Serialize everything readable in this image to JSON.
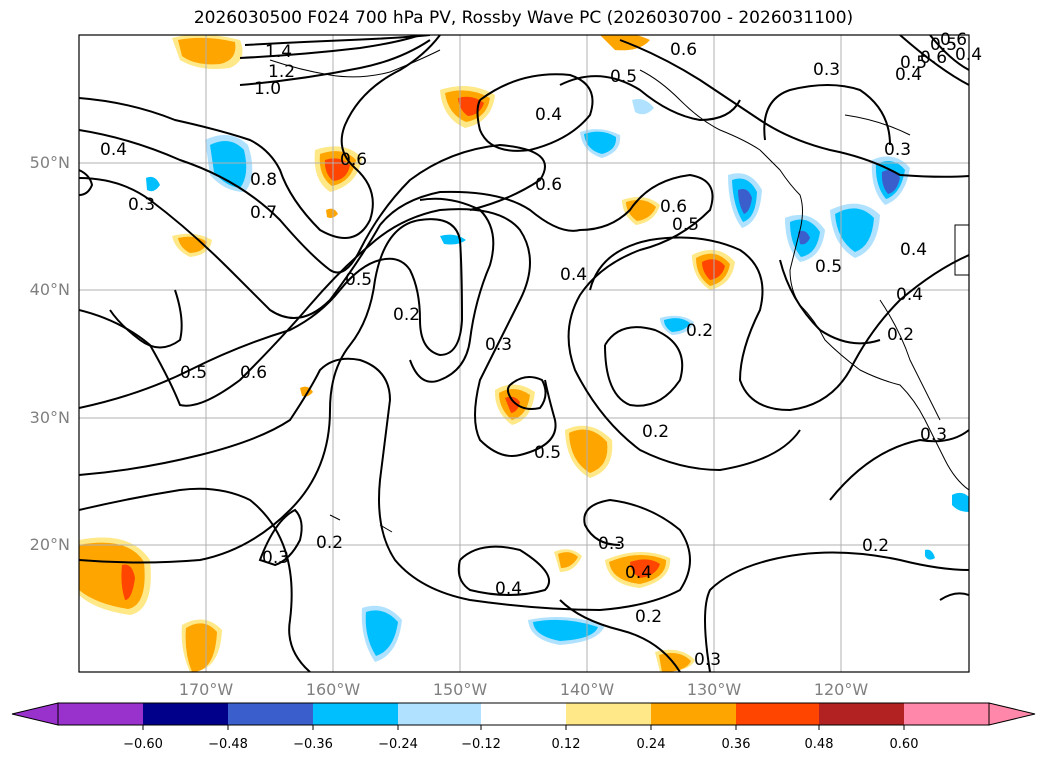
{
  "title": "2026030500 F024 700 hPa PV, Rossby Wave PC (2026030700 - 2026031100)",
  "lat_labels": [
    "50°N",
    "40°N",
    "30°N",
    "20°N"
  ],
  "lon_labels": [
    "170°W",
    "160°W",
    "150°W",
    "140°W",
    "130°W",
    "120°W"
  ],
  "colorbar": {
    "ticks": [
      "−0.60",
      "−0.48",
      "−0.36",
      "−0.24",
      "−0.12",
      "0.12",
      "0.24",
      "0.36",
      "0.48",
      "0.60"
    ],
    "colors": [
      "#9932cc",
      "#00008b",
      "#3a5fcd",
      "#00bfff",
      "#b0e2ff",
      "#ffffff",
      "#ffe888",
      "#ffa500",
      "#ff4500",
      "#b22222",
      "#ff88aa"
    ]
  },
  "contour_labels": [
    "1.4",
    "1.2",
    "1.0",
    "0.4",
    "0.3",
    "0.8",
    "0.7",
    "0.6",
    "0.5",
    "0.4",
    "0.5",
    "0.6",
    "0.4",
    "0.6",
    "0.6",
    "0.5",
    "0.5",
    "0.4",
    "0.2",
    "0.3",
    "0.5",
    "0.6",
    "0.5",
    "0.2",
    "0.2",
    "0.4",
    "0.3",
    "0.2",
    "0.3",
    "0.4",
    "0.2",
    "0.3",
    "0.4",
    "0.5",
    "0.3",
    "0.4",
    "0.6",
    "0.5",
    "0.2",
    "0.3",
    "0.2",
    "0.3",
    "0.6",
    "0.4"
  ]
}
